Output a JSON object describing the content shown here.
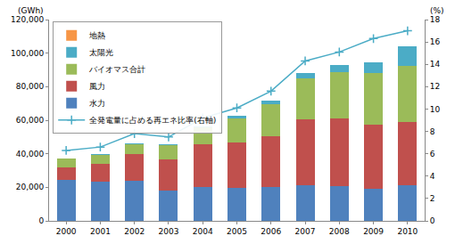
{
  "chart_data": {
    "type": "bar",
    "stacked": true,
    "ylabel": "(GWh)",
    "y2label": "(%)",
    "categories": [
      "2000",
      "2001",
      "2002",
      "2003",
      "2004",
      "2005",
      "2006",
      "2007",
      "2008",
      "2009",
      "2010"
    ],
    "series": [
      {
        "name": "水力",
        "color": "#4f81bd",
        "type": "bar",
        "values": [
          24500,
          23500,
          24000,
          18000,
          20000,
          19500,
          20000,
          21000,
          20500,
          19000,
          21000
        ]
      },
      {
        "name": "風力",
        "color": "#c0504d",
        "type": "bar",
        "values": [
          7500,
          10500,
          15800,
          18800,
          25500,
          27200,
          30700,
          39700,
          40500,
          38600,
          37800
        ]
      },
      {
        "name": "バイオマス合計",
        "color": "#9bbb59",
        "type": "bar",
        "values": [
          5000,
          5500,
          6000,
          8500,
          10500,
          14500,
          19000,
          24500,
          27500,
          30500,
          33500
        ]
      },
      {
        "name": "太陽光",
        "color": "#4bacc6",
        "type": "bar",
        "values": [
          60,
          100,
          200,
          300,
          550,
          1300,
          2200,
          3100,
          4400,
          6600,
          11700
        ]
      },
      {
        "name": "地熱",
        "color": "#f79646",
        "type": "bar",
        "values": [
          0,
          0,
          0,
          0,
          0.2,
          0.2,
          0.4,
          0.4,
          18,
          19,
          28
        ]
      },
      {
        "name": "全発電量に占める再エネ比率(右軸)",
        "color": "#4bacc6",
        "type": "line",
        "axis": "y2",
        "marker": "cross",
        "values": [
          6.3,
          6.6,
          7.8,
          7.5,
          9.2,
          10.1,
          11.6,
          14.3,
          15.1,
          16.3,
          17.0
        ]
      }
    ],
    "ylim": [
      0,
      120000
    ],
    "yticks": [
      0,
      {
        "value": 20000,
        "label": "20,000"
      },
      {
        "value": 40000,
        "label": "40,000"
      },
      {
        "value": 60000,
        "label": "60,000"
      },
      {
        "value": 80000,
        "label": "80,000"
      },
      {
        "value": 100000,
        "label": "100,000"
      },
      {
        "value": 120000,
        "label": "120,000"
      }
    ],
    "y2lim": [
      0,
      18
    ],
    "y2ticks": [
      0,
      2,
      4,
      6,
      8,
      10,
      12,
      14,
      16,
      18
    ],
    "grid": false,
    "legend": "top-left"
  }
}
